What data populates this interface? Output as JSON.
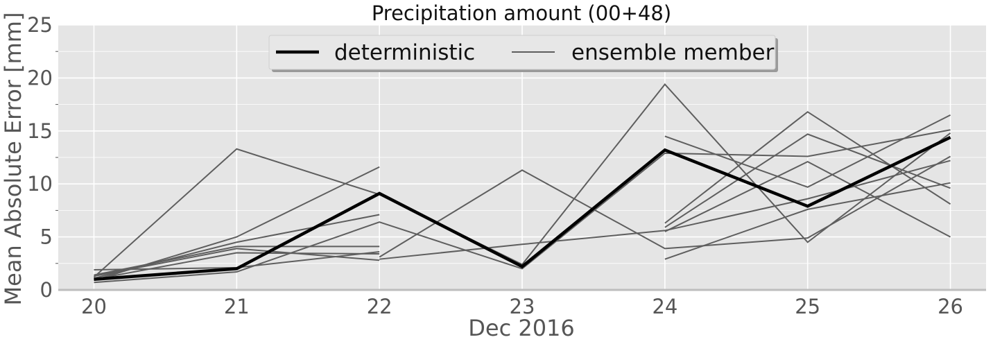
{
  "chart_data": {
    "type": "line",
    "title": "Precipitation amount (00+48)",
    "xlabel": "Dec 2016",
    "ylabel": "Mean Absolute Error [mm]",
    "x": [
      20,
      21,
      22,
      23,
      24,
      25,
      26
    ],
    "x_tick_labels": [
      "20",
      "21",
      "22",
      "23",
      "24",
      "25",
      "26"
    ],
    "xlim": [
      19.75,
      26.25
    ],
    "ylim": [
      0,
      25
    ],
    "y_major_ticks": [
      0,
      5,
      10,
      15,
      20,
      25
    ],
    "y_minor_ticks": [
      2.5,
      7.5,
      12.5,
      17.5,
      22.5
    ],
    "grid": true,
    "legend_position": "top-center",
    "colors": {
      "background": "#e5e5e5",
      "grid": "#ffffff",
      "deterministic": "#000000",
      "ensemble": "#5e5e5e"
    },
    "legend": [
      {
        "label": "deterministic",
        "color": "#000000"
      },
      {
        "label": "ensemble member",
        "color": "#5e5e5e"
      }
    ],
    "deterministic": {
      "name": "deterministic",
      "points": [
        [
          20,
          1.0
        ],
        [
          21,
          2.0
        ],
        [
          22,
          9.1
        ],
        [
          23,
          2.2
        ],
        [
          24,
          13.2
        ],
        [
          25,
          7.9
        ],
        [
          26,
          14.4
        ]
      ]
    },
    "ensemble_segments": [
      [
        [
          20,
          1.2
        ],
        [
          21,
          13.3
        ],
        [
          22,
          9.0
        ],
        [
          23,
          2.4
        ],
        [
          24,
          19.4
        ],
        [
          25,
          4.5
        ],
        [
          26,
          14.8
        ]
      ],
      [
        [
          20,
          0.9
        ],
        [
          21,
          5.0
        ],
        [
          22,
          11.6
        ]
      ],
      [
        [
          20,
          1.3
        ],
        [
          21,
          3.9
        ],
        [
          22,
          2.8
        ]
      ],
      [
        [
          20,
          1.0
        ],
        [
          21,
          3.5
        ],
        [
          22,
          3.4
        ]
      ],
      [
        [
          20,
          1.9
        ],
        [
          21,
          2.1
        ],
        [
          22,
          3.6
        ]
      ],
      [
        [
          20,
          0.7
        ],
        [
          21,
          1.7
        ],
        [
          22,
          6.4
        ],
        [
          23,
          2.0
        ],
        [
          24,
          12.9
        ],
        [
          25,
          12.6
        ],
        [
          26,
          15.1
        ]
      ],
      [
        [
          20,
          1.4
        ],
        [
          21,
          4.1
        ],
        [
          22,
          4.1
        ]
      ],
      [
        [
          20,
          1.1
        ],
        [
          21,
          4.5
        ],
        [
          22,
          7.1
        ]
      ],
      [
        [
          22,
          2.9
        ],
        [
          23,
          4.3
        ],
        [
          24,
          5.6
        ],
        [
          25,
          8.6
        ],
        [
          26,
          12.2
        ]
      ],
      [
        [
          22,
          3.1
        ],
        [
          23,
          11.3
        ],
        [
          24,
          3.9
        ],
        [
          25,
          4.9
        ],
        [
          26,
          12.6
        ]
      ],
      [
        [
          24,
          14.5
        ],
        [
          25,
          9.7
        ],
        [
          26,
          16.5
        ]
      ],
      [
        [
          24,
          6.3
        ],
        [
          25,
          16.8
        ],
        [
          26,
          8.1
        ]
      ],
      [
        [
          24,
          5.9
        ],
        [
          25,
          14.7
        ],
        [
          26,
          9.6
        ]
      ],
      [
        [
          24,
          2.9
        ],
        [
          25,
          7.6
        ],
        [
          26,
          10.1
        ]
      ],
      [
        [
          24,
          5.5
        ],
        [
          25,
          12.1
        ],
        [
          26,
          5.0
        ]
      ]
    ]
  }
}
